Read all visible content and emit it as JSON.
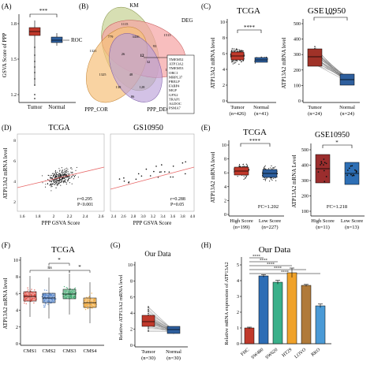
{
  "panels": {
    "A": {
      "letter": "(A)",
      "ylabel": "GSVA Score of PPP",
      "yticks": [
        1.2,
        1.5,
        1.8
      ],
      "groups": [
        "Tumor",
        "Normal"
      ],
      "sig": "***",
      "roc_label": "ROC",
      "box_colors": [
        "#c0392b",
        "#2e5f9e"
      ]
    },
    "B": {
      "letter": "(B)",
      "sets": [
        "KM",
        "DEG",
        "PPP_COR",
        "PPP_DEG"
      ],
      "set_colors": [
        "#c9d49a",
        "#f5a3a3",
        "#f7c17a",
        "#bba2d9"
      ],
      "center_value": "12",
      "gene_list": [
        "TMEM52",
        "ATP13A2",
        "TMEM53",
        "ORC1",
        "MRPL37",
        "PRELP",
        "FABP4",
        "MGP",
        "GPX2",
        "TRAP1",
        "ALDOC",
        "PSMA7"
      ],
      "region_values": [
        "1115",
        "1513",
        "1321",
        "3436",
        "779",
        "93",
        "1325",
        "1045",
        "26",
        "32",
        "138",
        "128",
        "86",
        "48"
      ]
    },
    "C1": {
      "letter": "(C)",
      "title": "TCGA",
      "ylabel": "ATP13A2 mRNA level",
      "yticks": [
        0,
        2,
        4,
        6,
        8,
        10
      ],
      "groups": [
        "Tumor",
        "Normal"
      ],
      "group_ns": [
        "(n=426)",
        "(n=41)"
      ],
      "sig": "****"
    },
    "C2": {
      "title": "GSE10950",
      "ylabel": "ATP13A2 mRNA level",
      "yticks": [
        0,
        100,
        200,
        300,
        400,
        500
      ],
      "groups": [
        "Tumor",
        "Normal"
      ],
      "group_ns": [
        "(n=24)",
        "(n=24)"
      ],
      "sig": "***"
    },
    "D1": {
      "letter": "(D)",
      "title": "TCGA",
      "ylabel": "ATP13A2 mRNA level",
      "xlabel": "PPP GSVA Score",
      "xticks": [
        "1.6",
        "1.8",
        "2",
        "2.2",
        "2.4",
        "2.6"
      ],
      "yticks": [
        "2",
        "4",
        "6",
        "8"
      ],
      "r": "r=0.295",
      "p": "P<0.001"
    },
    "D2": {
      "title": "GS10950",
      "xlabel": "PPP GSVA Score",
      "xticks": [
        "2.4",
        "2.6",
        "2.8",
        "3.0",
        "3.2",
        "3.4",
        "3.6",
        "3.8",
        "4.0"
      ],
      "r": "r=0.288",
      "p": "P=0.05"
    },
    "E1": {
      "letter": "(E)",
      "title": "TCGA",
      "ylabel": "ATP13A2 mRNA level",
      "yticks": [
        0,
        2,
        4,
        6,
        8,
        10
      ],
      "groups": [
        "High Score",
        "Low Score"
      ],
      "group_ns": [
        "(n=199)",
        "(n=227)"
      ],
      "sig": "****",
      "fc": "FC=1.202"
    },
    "E2": {
      "title": "GSE10950",
      "ylabel": "ATP13A2 mRNA Level",
      "yticks": [
        100,
        200,
        300,
        400,
        500
      ],
      "groups": [
        "High Score",
        "Low Score"
      ],
      "group_ns": [
        "(n=11)",
        "(n=13)"
      ],
      "sig": "*",
      "fc": "FC=1.218"
    },
    "F": {
      "letter": "(F)",
      "title": "TCGA",
      "ylabel": "ATP13A2 mRNA level",
      "yticks": [
        0,
        2,
        4,
        6,
        8,
        10
      ],
      "groups": [
        "CMS1",
        "CMS2",
        "CMS3",
        "CMS4"
      ],
      "sig_labels": [
        "ns",
        "*",
        "*"
      ],
      "colors": [
        "#e0453a",
        "#4a7dc9",
        "#3aa86b",
        "#f0a430"
      ]
    },
    "G": {
      "letter": "(G)",
      "title": "Our Data",
      "ylabel": "Relative ATP13A2 mRNA level",
      "yticks": [
        0,
        2,
        4,
        6,
        8,
        10
      ],
      "groups": [
        "Tumor",
        "Normal"
      ],
      "group_ns": [
        "(n=30)",
        "(n=30)"
      ]
    },
    "H": {
      "letter": "(H)",
      "title": "Our Data",
      "ylabel": "Relative mRNA expression of ATP13A2",
      "yticks": [
        0,
        1,
        2,
        3,
        4,
        5
      ],
      "sig_labels": [
        "****",
        "****",
        "****",
        "****",
        "****"
      ]
    }
  },
  "chart_data": [
    {
      "panel": "H",
      "type": "bar",
      "title": "Our Data",
      "ylabel": "Relative mRNA expression of ATP13A2",
      "categories": [
        "FHC",
        "SW480",
        "SW620",
        "HT29",
        "LOVO",
        "RKO"
      ],
      "values": [
        1.0,
        4.3,
        3.9,
        4.5,
        3.7,
        2.4
      ],
      "errors": [
        0.05,
        0.08,
        0.12,
        0.3,
        0.06,
        0.12
      ],
      "colors": [
        "#c0392b",
        "#2d6db5",
        "#3ab08a",
        "#f0a22a",
        "#b07a3a",
        "#4a9ad6"
      ],
      "ylim": [
        0,
        5
      ]
    }
  ]
}
